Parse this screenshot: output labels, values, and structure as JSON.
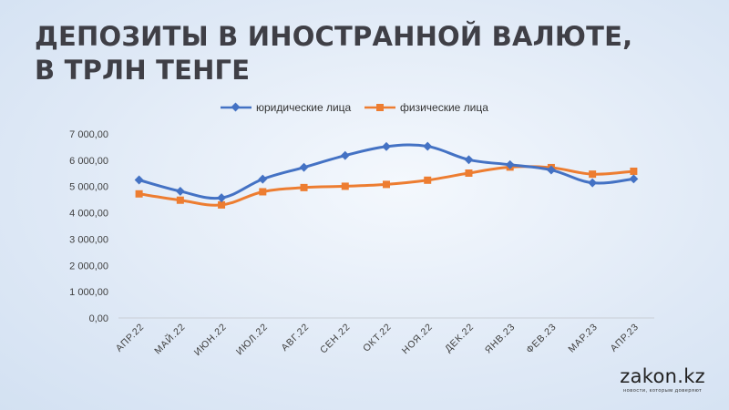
{
  "title_line1": "ДЕПОЗИТЫ В ИНОСТРАННОЙ ВАЛЮТЕ,",
  "title_line2": "В ТРЛН ТЕНГЕ",
  "logo": {
    "name": "zakon.kz",
    "tagline": "новости, которым доверяют"
  },
  "chart_data": {
    "type": "line",
    "categories": [
      "АПР.22",
      "МАЙ.22",
      "ИЮН.22",
      "ИЮЛ.22",
      "АВГ.22",
      "СЕН.22",
      "ОКТ.22",
      "НОЯ.22",
      "ДЕК.22",
      "ЯНВ.23",
      "ФЕВ.23",
      "МАР.23",
      "АПР.23"
    ],
    "series": [
      {
        "name": "юридические лица",
        "color": "#4472c4",
        "marker": "diamond",
        "values": [
          5250,
          4820,
          4570,
          5280,
          5730,
          6180,
          6520,
          6530,
          6020,
          5830,
          5630,
          5140,
          5290
        ]
      },
      {
        "name": "физические лица",
        "color": "#ed7d31",
        "marker": "square",
        "values": [
          4720,
          4480,
          4300,
          4800,
          4960,
          5010,
          5080,
          5240,
          5510,
          5740,
          5720,
          5470,
          5580
        ]
      }
    ],
    "yticks": [
      "0,00",
      "1 000,00",
      "2 000,00",
      "3 000,00",
      "4 000,00",
      "5 000,00",
      "6 000,00",
      "7 000,00"
    ],
    "ylim": [
      0,
      7000
    ],
    "legend_position": "top-center",
    "grid": false
  }
}
